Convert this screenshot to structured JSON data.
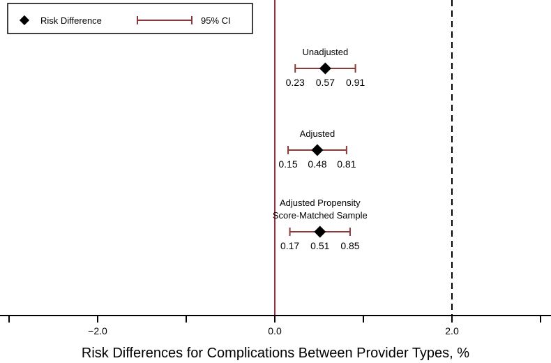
{
  "chart_data": {
    "type": "forest",
    "xlabel": "Risk Differences for Complications Between Provider Types, %",
    "xlim": [
      -3.0,
      3.0
    ],
    "major_ticks": [
      -2.0,
      0.0,
      2.0
    ],
    "major_tick_labels": [
      "−2.0",
      "0.0",
      "2.0"
    ],
    "minor_ticks": [
      -3.0,
      -1.0,
      1.0,
      3.0
    ],
    "reference_line": {
      "x": 0.0,
      "color": "#A0283C"
    },
    "threshold_line": {
      "x": 2.0,
      "style": "dashed",
      "color": "#000000"
    },
    "legend": {
      "placement": "top-left",
      "point_label": "Risk Difference",
      "ci_label": "95% CI"
    },
    "colors": {
      "ci": "#8B3A3A",
      "point": "#000000"
    },
    "estimates": [
      {
        "label_lines": [
          "Unadjusted"
        ],
        "value": 0.57,
        "lower": 0.23,
        "upper": 0.91,
        "value_text": "0.57",
        "lower_text": "0.23",
        "upper_text": "0.91"
      },
      {
        "label_lines": [
          "Adjusted"
        ],
        "value": 0.48,
        "lower": 0.15,
        "upper": 0.81,
        "value_text": "0.48",
        "lower_text": "0.15",
        "upper_text": "0.81"
      },
      {
        "label_lines": [
          "Adjusted Propensity",
          "Score-Matched Sample"
        ],
        "value": 0.51,
        "lower": 0.17,
        "upper": 0.85,
        "value_text": "0.51",
        "lower_text": "0.17",
        "upper_text": "0.85"
      }
    ]
  }
}
